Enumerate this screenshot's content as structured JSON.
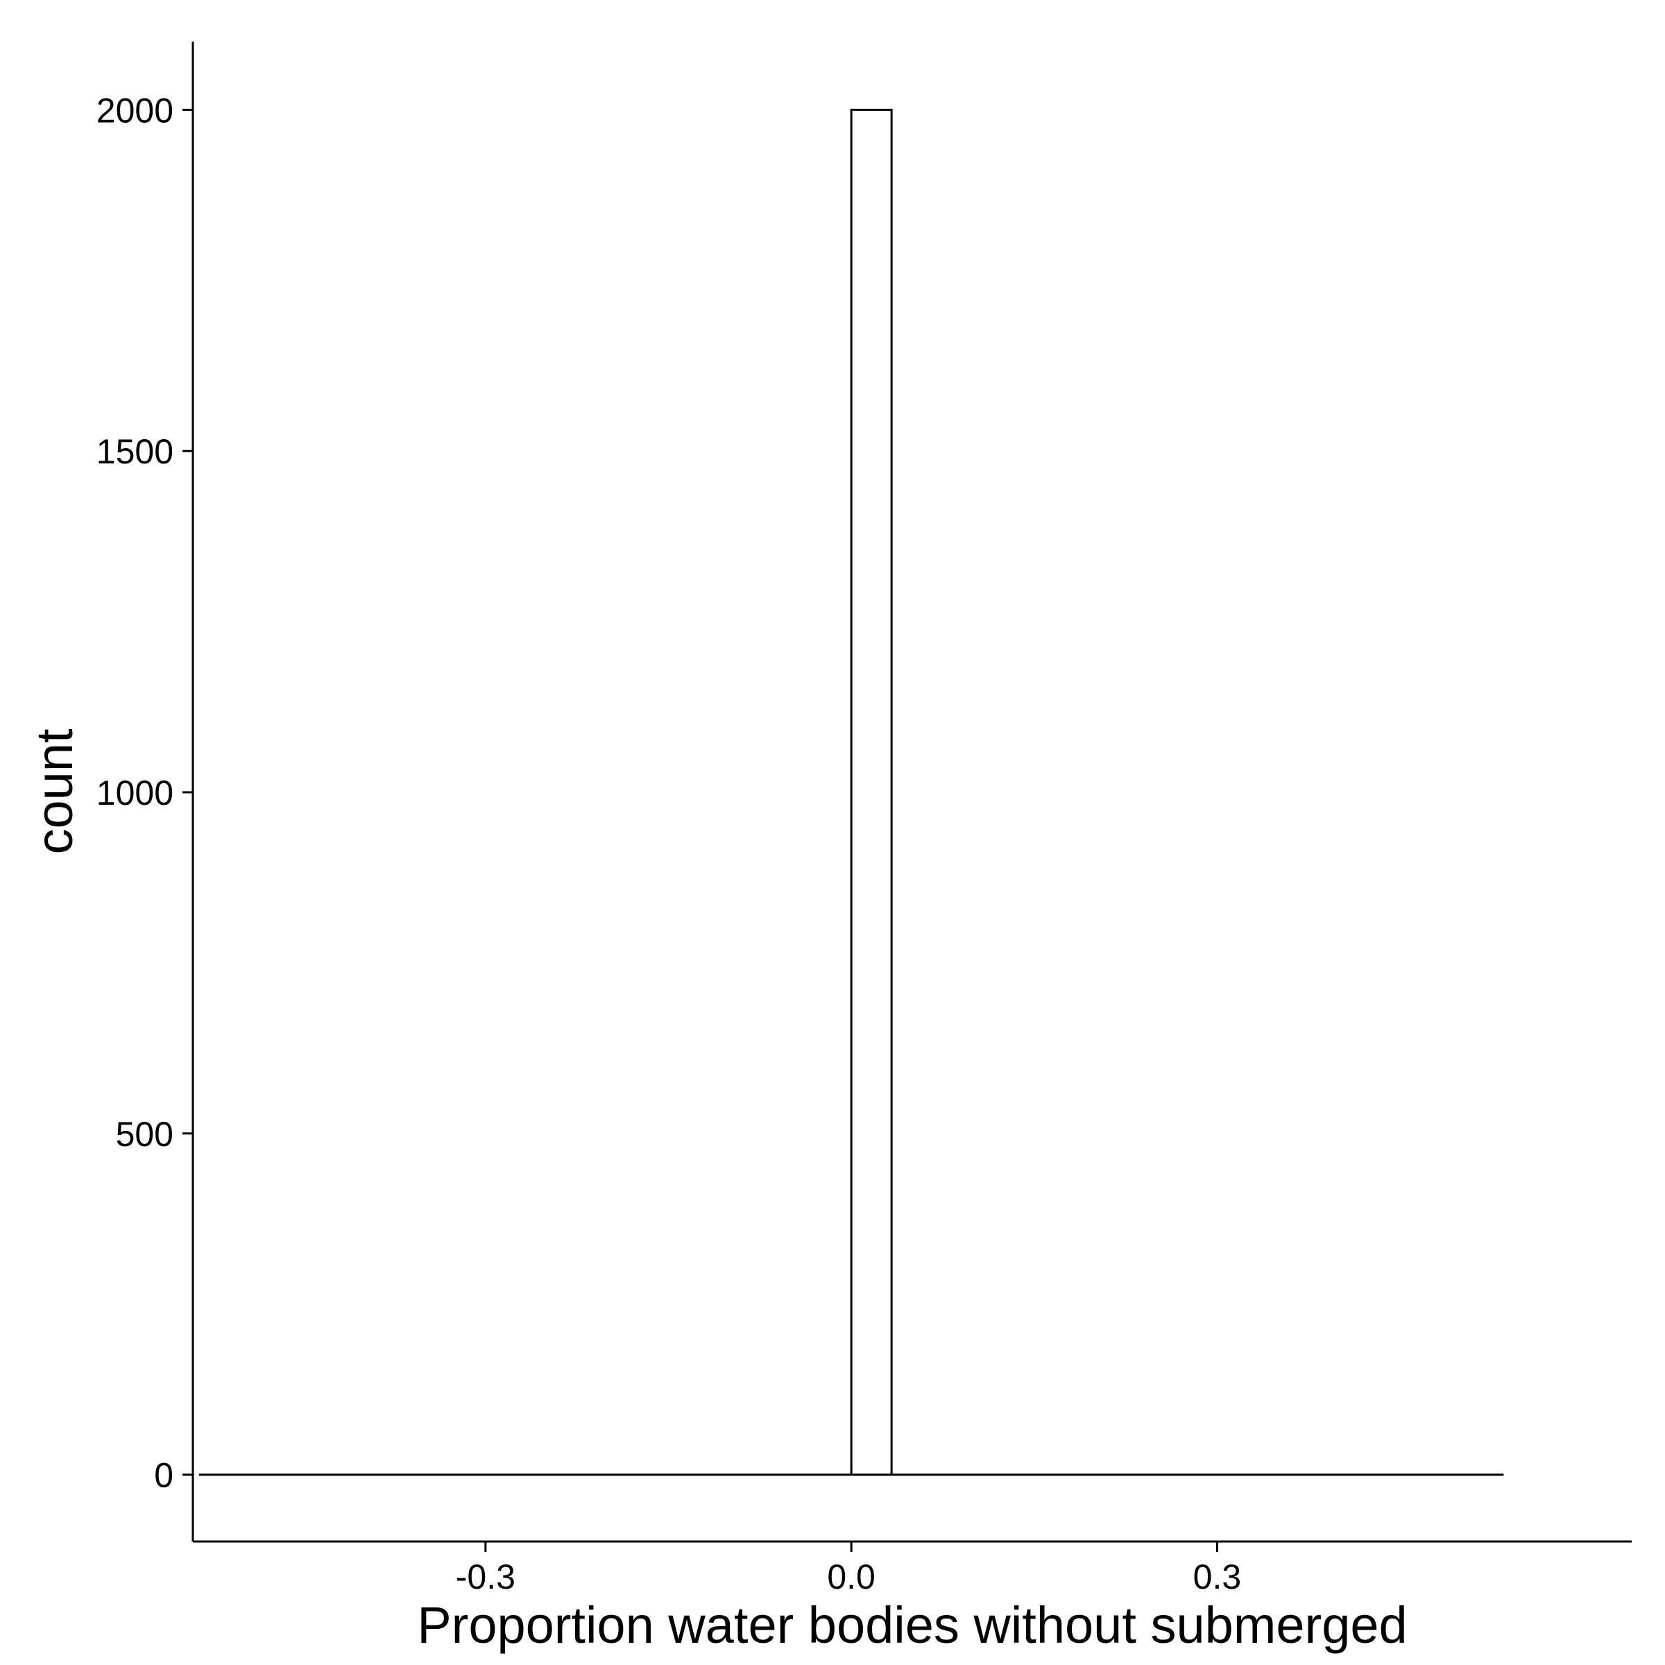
{
  "chart_data": {
    "type": "bar",
    "title": "",
    "xlabel": "Proportion water bodies without submerged",
    "ylabel": "count",
    "xlim": [
      -0.54,
      0.64
    ],
    "ylim": [
      -98,
      2100
    ],
    "x_ticks": [
      -0.3,
      0.0,
      0.3
    ],
    "x_tick_labels": [
      "-0.3",
      "0.0",
      "0.3"
    ],
    "y_ticks": [
      0,
      500,
      1000,
      1500,
      2000
    ],
    "y_tick_labels": [
      "0",
      "500",
      "1000",
      "1500",
      "2000"
    ],
    "bin_range": [
      -0.535,
      0.535
    ],
    "bins": [
      {
        "x0": 0.0,
        "x1": 0.033,
        "count": 2000
      }
    ],
    "grid": false,
    "legend": "none",
    "colors": {
      "bar_fill": "#ffffff",
      "bar_stroke": "#000000",
      "axis": "#000000"
    }
  }
}
